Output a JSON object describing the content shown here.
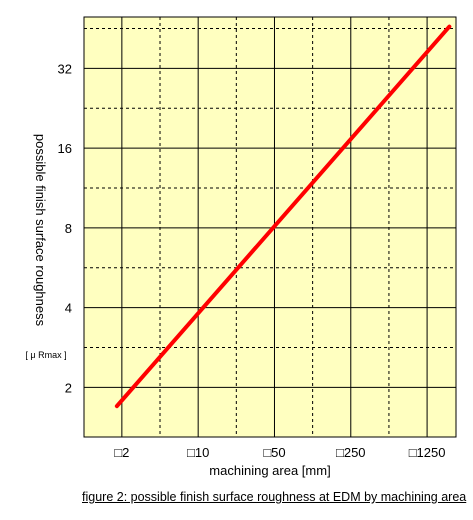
{
  "chart_data": {
    "type": "line",
    "xlabel": "machining area [mm]",
    "ylabel": "possible finish surface roughness",
    "yunit": "[ μ Rmax ]",
    "x_scale": "log",
    "y_scale": "log",
    "x_ticks": [
      2,
      10,
      50,
      250,
      1250
    ],
    "x_tick_labels": [
      "□2",
      "□10",
      "□50",
      "□250",
      "□1250"
    ],
    "y_ticks": [
      2,
      4,
      8,
      16,
      32
    ],
    "y_tick_labels": [
      "2",
      "4",
      "8",
      "16",
      "32"
    ],
    "xlim": [
      0.9,
      2300
    ],
    "ylim": [
      1.3,
      50
    ],
    "grid": true,
    "series": [
      {
        "color": "#ff0000",
        "x": [
          1.8,
          2000
        ],
        "y": [
          1.7,
          46
        ]
      }
    ]
  },
  "caption": "figure 2: possible finish surface roughness at EDM by machining area",
  "colors": {
    "plot_background": "#ffffc0",
    "grid": "#000000",
    "line": "#ff0000"
  }
}
